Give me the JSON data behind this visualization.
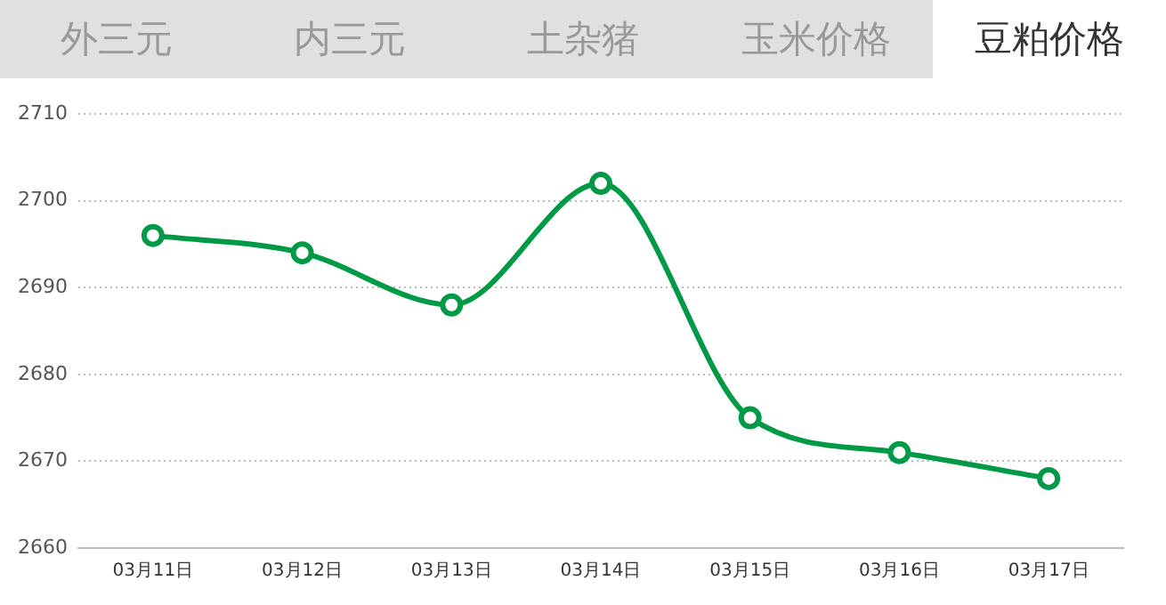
{
  "chart_data": {
    "type": "line",
    "title": "豆粕价格",
    "annotations": [
      "外三元",
      "内三元",
      "土杂猪",
      "玉米价格"
    ],
    "categories": [
      "03月11日",
      "03月12日",
      "03月13日",
      "03月14日",
      "03月15日",
      "03月16日",
      "03月17日"
    ],
    "series": [
      {
        "color": "#009a47",
        "values": [
          2696,
          2694,
          2688,
          2702,
          2675,
          2671,
          2668
        ]
      }
    ],
    "ylim": [
      2660,
      2710
    ],
    "yticks": [
      2660,
      2670,
      2680,
      2690,
      2700,
      2710
    ],
    "grid": "y",
    "marker": "circle",
    "line_style": "solid",
    "legend": false
  }
}
